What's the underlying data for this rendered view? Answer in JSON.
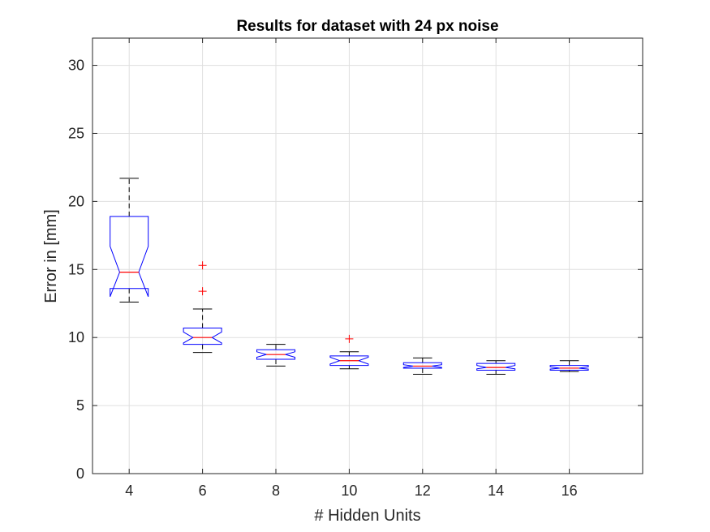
{
  "chart_data": {
    "type": "boxplot",
    "title": "Results for dataset with 24 px noise",
    "xlabel": "# Hidden Units",
    "ylabel": "Error in [mm]",
    "categories": [
      "4",
      "6",
      "8",
      "10",
      "12",
      "14",
      "16"
    ],
    "ylim": [
      0,
      32
    ],
    "yticks": [
      0,
      5,
      10,
      15,
      20,
      25,
      30
    ],
    "grid": true,
    "notched": true,
    "boxes": [
      {
        "category": "4",
        "whisker_low": 12.6,
        "q1": 13.6,
        "median": 14.8,
        "notch_low": 13.0,
        "notch_high": 16.7,
        "q3": 18.9,
        "whisker_high": 21.7,
        "outliers": []
      },
      {
        "category": "6",
        "whisker_low": 8.9,
        "q1": 9.5,
        "median": 10.0,
        "notch_low": 9.6,
        "notch_high": 10.4,
        "q3": 10.7,
        "whisker_high": 12.1,
        "outliers": [
          13.4,
          15.3
        ]
      },
      {
        "category": "8",
        "whisker_low": 7.9,
        "q1": 8.4,
        "median": 8.75,
        "notch_low": 8.55,
        "notch_high": 8.95,
        "q3": 9.1,
        "whisker_high": 9.5,
        "outliers": []
      },
      {
        "category": "10",
        "whisker_low": 7.7,
        "q1": 7.95,
        "median": 8.3,
        "notch_low": 8.05,
        "notch_high": 8.55,
        "q3": 8.65,
        "whisker_high": 8.95,
        "outliers": [
          9.9
        ]
      },
      {
        "category": "12",
        "whisker_low": 7.3,
        "q1": 7.75,
        "median": 7.9,
        "notch_low": 7.8,
        "notch_high": 8.0,
        "q3": 8.15,
        "whisker_high": 8.5,
        "outliers": []
      },
      {
        "category": "14",
        "whisker_low": 7.3,
        "q1": 7.6,
        "median": 7.8,
        "notch_low": 7.7,
        "notch_high": 7.95,
        "q3": 8.1,
        "whisker_high": 8.3,
        "outliers": []
      },
      {
        "category": "16",
        "whisker_low": 7.5,
        "q1": 7.6,
        "median": 7.75,
        "notch_low": 7.68,
        "notch_high": 7.85,
        "q3": 7.95,
        "whisker_high": 8.3,
        "outliers": []
      }
    ],
    "colors": {
      "box": "#0000ff",
      "median": "#ff0000",
      "whisker": "#000000",
      "outlier": "#ff0000",
      "grid": "#dfdfdf",
      "axis": "#262626"
    }
  }
}
